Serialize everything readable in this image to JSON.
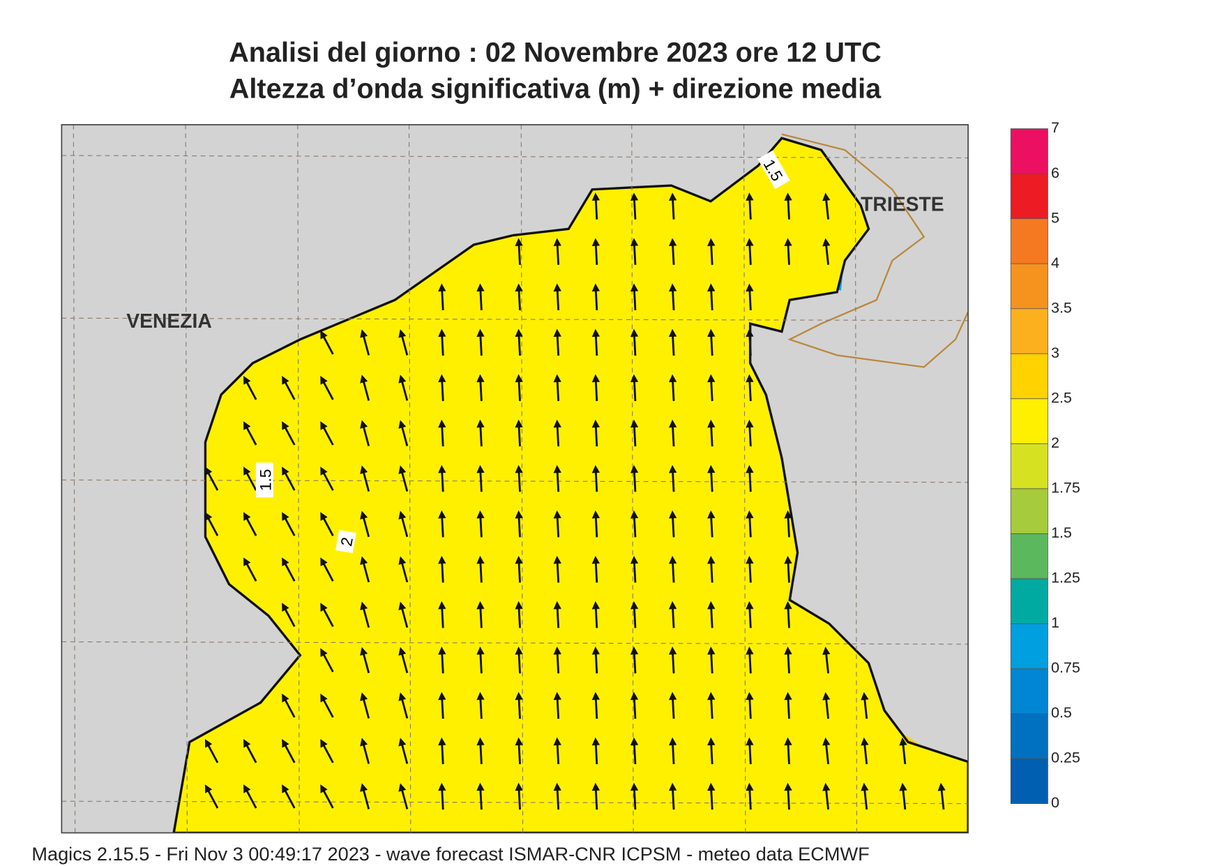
{
  "title": {
    "line1": "Analisi del giorno :  02 Novembre  2023   ore 12 UTC",
    "line2": "Altezza d’onda significativa (m) + direzione media"
  },
  "map": {
    "cities": [
      "VENEZIA",
      "TRIESTE"
    ],
    "contour_labels": [
      "1.5",
      "1.5",
      "2"
    ]
  },
  "colorbar": {
    "levels": [
      0,
      0.25,
      0.5,
      0.75,
      1,
      1.25,
      1.5,
      1.75,
      2,
      2.5,
      3,
      3.5,
      4,
      5,
      6,
      7
    ],
    "colors": [
      "#005fb0",
      "#0070c0",
      "#0086d2",
      "#009fe0",
      "#00aaa0",
      "#5cb85c",
      "#a6cb3c",
      "#d6e221",
      "#fff000",
      "#ffd200",
      "#fcb01e",
      "#f6921e",
      "#f47920",
      "#ed1c24",
      "#ec1063"
    ]
  },
  "footer": "Magics 2.15.5 - Fri Nov  3 00:49:17 2023 - wave forecast  ISMAR-CNR  ICPSM - meteo data   ECMWF"
}
